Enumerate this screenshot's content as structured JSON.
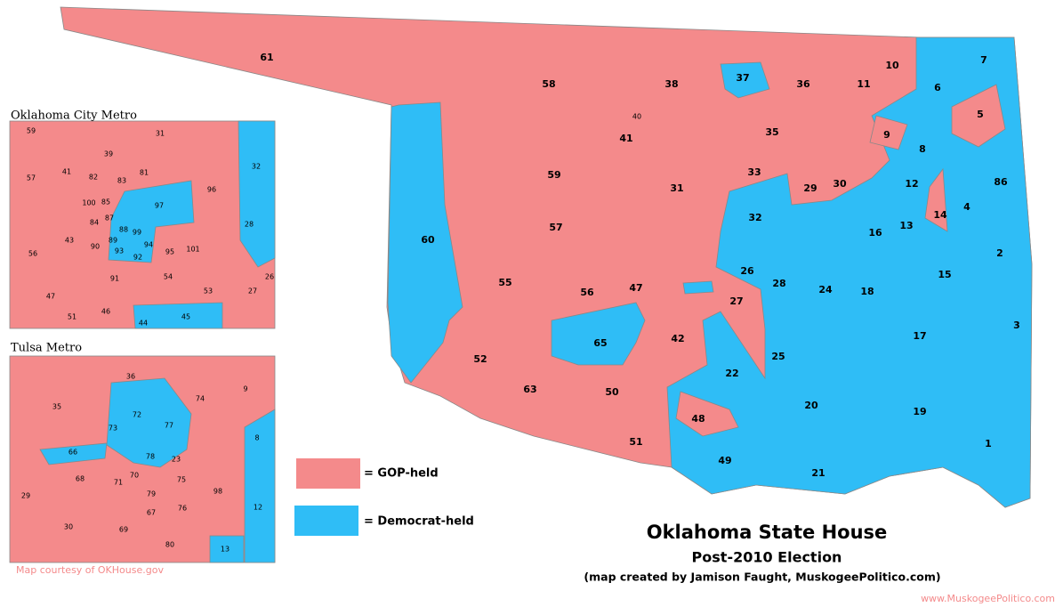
{
  "title": "Oklahoma State House",
  "subtitle": "Post-2010 Election",
  "credit": "(map created by Jamison Faught, MuskogeePolitico.com)",
  "source": "Map courtesy of OKHouse.gov",
  "website": "www.MuskogeePolitico.com",
  "legend": [
    {
      "label": "= GOP-held",
      "color": "#f48a8b"
    },
    {
      "label": "= Democrat-held",
      "color": "#2fbdf6"
    }
  ],
  "main_map": {
    "districts": [
      "61",
      "58",
      "38",
      "37",
      "36",
      "10",
      "7",
      "11",
      "6",
      "5",
      "40",
      "41",
      "35",
      "9",
      "8",
      "59",
      "33",
      "29",
      "30",
      "12",
      "86",
      "31",
      "4",
      "14",
      "60",
      "32",
      "16",
      "13",
      "57",
      "2",
      "55",
      "56",
      "47",
      "26",
      "28",
      "24",
      "18",
      "15",
      "27",
      "3",
      "65",
      "42",
      "17",
      "25",
      "52",
      "22",
      "63",
      "50",
      "20",
      "19",
      "48",
      "51",
      "1",
      "49",
      "21"
    ]
  },
  "okc_inset": {
    "title": "Oklahoma City Metro",
    "districts": [
      "59",
      "31",
      "39",
      "57",
      "41",
      "82",
      "83",
      "81",
      "96",
      "100",
      "85",
      "97",
      "32",
      "84",
      "87",
      "88",
      "99",
      "28",
      "89",
      "94",
      "56",
      "43",
      "90",
      "93",
      "92",
      "95",
      "101",
      "26",
      "54",
      "91",
      "53",
      "27",
      "47",
      "46",
      "45",
      "51",
      "44"
    ]
  },
  "tulsa_inset": {
    "title": "Tulsa Metro",
    "districts": [
      "36",
      "74",
      "9",
      "35",
      "72",
      "77",
      "73",
      "8",
      "66",
      "78",
      "23",
      "68",
      "71",
      "70",
      "75",
      "98",
      "29",
      "79",
      "76",
      "12",
      "67",
      "30",
      "69",
      "80",
      "13"
    ]
  }
}
